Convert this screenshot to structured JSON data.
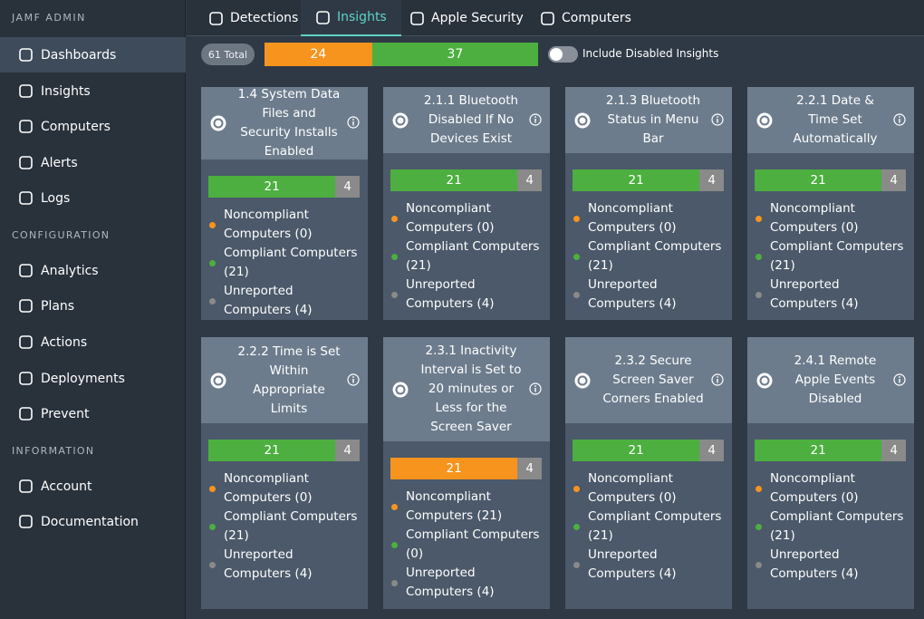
{
  "sidebar": {
    "brand": "JAMF ADMIN",
    "main": [
      "Dashboards",
      "Insights",
      "Computers",
      "Alerts",
      "Logs"
    ],
    "configuration": {
      "heading": "CONFIGURATION",
      "items": [
        "Analytics",
        "Plans",
        "Actions",
        "Deployments",
        "Prevent"
      ]
    },
    "information": {
      "heading": "INFORMATION",
      "items": [
        "Account",
        "Documentation"
      ]
    }
  },
  "tabs": [
    "Detections",
    "Insights",
    "Apple Security",
    "Computers"
  ],
  "summary": {
    "total": "61 Total",
    "segments": [
      {
        "value": 24,
        "color": "#f7941d"
      },
      {
        "value": 37,
        "color": "#4caf3f"
      }
    ],
    "toggle_label": "Include Disabled Insights"
  },
  "cards": [
    {
      "title": "1.4 System Data Files and Security Installs Enabled",
      "segments": [
        {
          "value": 21,
          "color": "#4caf3f"
        },
        {
          "value": 4,
          "color": "#8a8a8a"
        }
      ],
      "items": [
        {
          "label": "Noncompliant Computers (0)",
          "color": "#f7941d"
        },
        {
          "label": "Compliant Computers (21)",
          "color": "#4caf3f"
        },
        {
          "label": "Unreported Computers (4)",
          "color": "#8a8a8a"
        }
      ]
    },
    {
      "title": "2.1.1 Bluetooth Disabled If No Devices Exist",
      "segments": [
        {
          "value": 21,
          "color": "#4caf3f"
        },
        {
          "value": 4,
          "color": "#8a8a8a"
        }
      ],
      "items": [
        {
          "label": "Noncompliant Computers (0)",
          "color": "#f7941d"
        },
        {
          "label": "Compliant Computers (21)",
          "color": "#4caf3f"
        },
        {
          "label": "Unreported Computers (4)",
          "color": "#8a8a8a"
        }
      ]
    },
    {
      "title": "2.1.3 Bluetooth Status in Menu Bar",
      "segments": [
        {
          "value": 21,
          "color": "#4caf3f"
        },
        {
          "value": 4,
          "color": "#8a8a8a"
        }
      ],
      "items": [
        {
          "label": "Noncompliant Computers (0)",
          "color": "#f7941d"
        },
        {
          "label": "Compliant Computers (21)",
          "color": "#4caf3f"
        },
        {
          "label": "Unreported Computers (4)",
          "color": "#8a8a8a"
        }
      ]
    },
    {
      "title": "2.2.1 Date & Time Set Automatically",
      "segments": [
        {
          "value": 21,
          "color": "#4caf3f"
        },
        {
          "value": 4,
          "color": "#8a8a8a"
        }
      ],
      "items": [
        {
          "label": "Noncompliant Computers (0)",
          "color": "#f7941d"
        },
        {
          "label": "Compliant Computers (21)",
          "color": "#4caf3f"
        },
        {
          "label": "Unreported Computers (4)",
          "color": "#8a8a8a"
        }
      ]
    },
    {
      "title": "2.2.2 Time is Set Within Appropriate Limits",
      "segments": [
        {
          "value": 21,
          "color": "#4caf3f"
        },
        {
          "value": 4,
          "color": "#8a8a8a"
        }
      ],
      "items": [
        {
          "label": "Noncompliant Computers (0)",
          "color": "#f7941d"
        },
        {
          "label": "Compliant Computers (21)",
          "color": "#4caf3f"
        },
        {
          "label": "Unreported Computers (4)",
          "color": "#8a8a8a"
        }
      ]
    },
    {
      "title": "2.3.1 Inactivity Interval is Set to 20 minutes or Less for the Screen Saver",
      "segments": [
        {
          "value": 21,
          "color": "#f7941d"
        },
        {
          "value": 4,
          "color": "#8a8a8a"
        }
      ],
      "items": [
        {
          "label": "Noncompliant Computers (21)",
          "color": "#f7941d"
        },
        {
          "label": "Compliant Computers (0)",
          "color": "#4caf3f"
        },
        {
          "label": "Unreported Computers (4)",
          "color": "#8a8a8a"
        }
      ]
    },
    {
      "title": "2.3.2 Secure Screen Saver Corners Enabled",
      "segments": [
        {
          "value": 21,
          "color": "#4caf3f"
        },
        {
          "value": 4,
          "color": "#8a8a8a"
        }
      ],
      "items": [
        {
          "label": "Noncompliant Computers (0)",
          "color": "#f7941d"
        },
        {
          "label": "Compliant Computers (21)",
          "color": "#4caf3f"
        },
        {
          "label": "Unreported Computers (4)",
          "color": "#8a8a8a"
        }
      ]
    },
    {
      "title": "2.4.1 Remote Apple Events Disabled",
      "segments": [
        {
          "value": 21,
          "color": "#4caf3f"
        },
        {
          "value": 4,
          "color": "#8a8a8a"
        }
      ],
      "items": [
        {
          "label": "Noncompliant Computers (0)",
          "color": "#f7941d"
        },
        {
          "label": "Compliant Computers (21)",
          "color": "#4caf3f"
        },
        {
          "label": "Unreported Computers (4)",
          "color": "#8a8a8a"
        }
      ]
    }
  ]
}
